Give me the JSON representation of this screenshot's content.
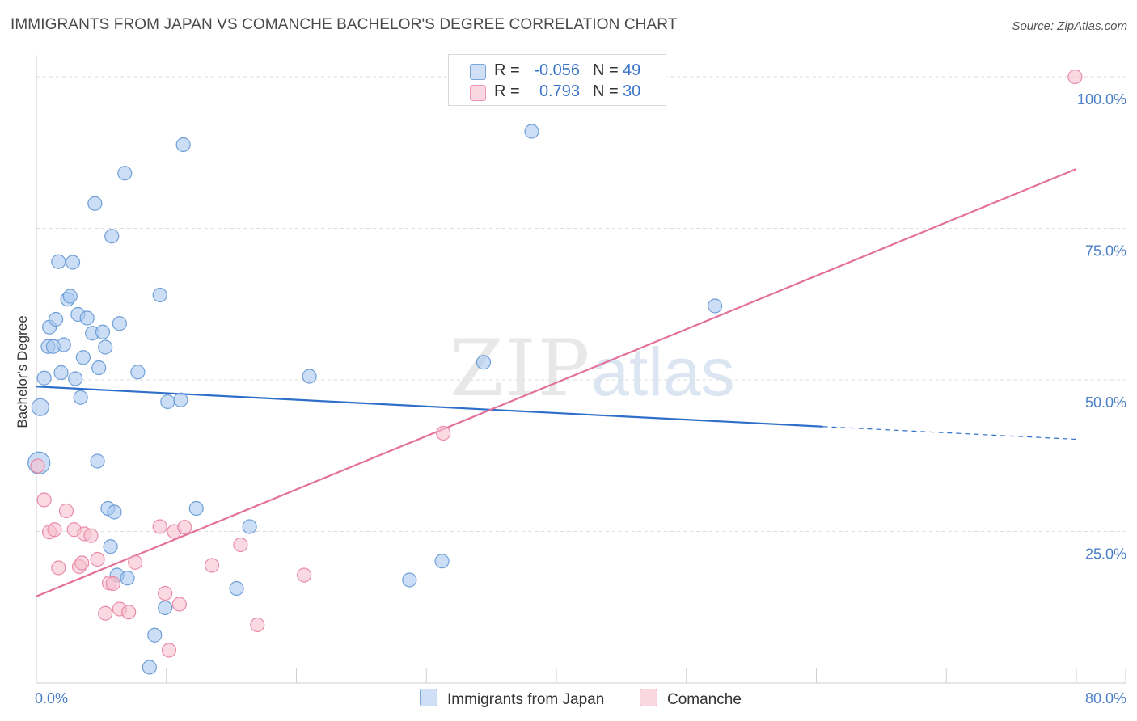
{
  "title": "IMMIGRANTS FROM JAPAN VS COMANCHE BACHELOR'S DEGREE CORRELATION CHART",
  "source": "Source: ZipAtlas.com",
  "watermark": {
    "zip": "ZIP",
    "atlas": "atlas"
  },
  "colors": {
    "blue": "#a9c8ee",
    "blue_stroke": "#6f9fd8",
    "blue_line": "#2f6fc9",
    "pink": "#f6bfd0",
    "pink_stroke": "#e98aa8",
    "pink_line": "#e3719a",
    "tick": "#4a7fc8",
    "grid": "#dddddd"
  },
  "legend": [
    {
      "r_label": "R =",
      "r_value": "-0.056",
      "n_label": "N =",
      "n_value": "49",
      "color": "#a9c8ee"
    },
    {
      "r_label": "R =",
      "r_value": "0.793",
      "n_label": "N =",
      "n_value": "30",
      "color": "#f6bfd0"
    }
  ],
  "bottom_legend": [
    {
      "label": "Immigrants from Japan",
      "color": "#a9c8ee"
    },
    {
      "label": "Comanche",
      "color": "#f6bfd0"
    }
  ],
  "chart_data": {
    "type": "scatter",
    "title": "IMMIGRANTS FROM JAPAN VS COMANCHE BACHELOR'S DEGREE CORRELATION CHART",
    "xlabel": "",
    "ylabel": "Bachelor's Degree",
    "xlim": [
      0,
      80
    ],
    "ylim": [
      0,
      100
    ],
    "x_tick_labels": [
      "0.0%",
      "80.0%"
    ],
    "y_tick_labels": [
      {
        "value": 100,
        "label": "100.0%"
      },
      {
        "value": 75,
        "label": "75.0%"
      },
      {
        "value": 50,
        "label": "50.0%"
      },
      {
        "value": 25,
        "label": "25.0%"
      }
    ],
    "series": [
      {
        "name": "Immigrants from Japan",
        "r": -0.056,
        "n": 49,
        "trend": {
          "x0": 0,
          "y0": 48.9,
          "x1": 60.5,
          "y1": 42.3,
          "dash_to_x": 80,
          "dash_to_y": 40.2
        },
        "points": [
          [
            0.2,
            36.3,
            24
          ],
          [
            0.3,
            45.5,
            18
          ],
          [
            0.6,
            50.3,
            14
          ],
          [
            0.9,
            55.5,
            14
          ],
          [
            1.0,
            58.7,
            14
          ],
          [
            1.3,
            55.5,
            14
          ],
          [
            1.5,
            60.0,
            14
          ],
          [
            1.7,
            69.5,
            14
          ],
          [
            1.9,
            51.2,
            14
          ],
          [
            2.1,
            55.8,
            14
          ],
          [
            2.4,
            63.3,
            14
          ],
          [
            2.6,
            63.8,
            14
          ],
          [
            2.8,
            69.4,
            14
          ],
          [
            3.0,
            50.2,
            14
          ],
          [
            3.2,
            60.8,
            14
          ],
          [
            3.4,
            47.1,
            14
          ],
          [
            3.6,
            53.7,
            14
          ],
          [
            3.9,
            60.2,
            14
          ],
          [
            4.3,
            57.7,
            14
          ],
          [
            4.5,
            79.1,
            14
          ],
          [
            4.7,
            36.6,
            14
          ],
          [
            4.8,
            52.0,
            14
          ],
          [
            5.1,
            57.9,
            14
          ],
          [
            5.3,
            55.4,
            14
          ],
          [
            5.5,
            28.8,
            14
          ],
          [
            5.8,
            73.7,
            14
          ],
          [
            5.7,
            22.5,
            14
          ],
          [
            6.0,
            28.2,
            14
          ],
          [
            6.2,
            17.8,
            14
          ],
          [
            6.4,
            59.3,
            14
          ],
          [
            6.8,
            84.1,
            14
          ],
          [
            7.0,
            17.3,
            14
          ],
          [
            7.8,
            51.3,
            14
          ],
          [
            8.7,
            2.6,
            14
          ],
          [
            9.1,
            7.9,
            14
          ],
          [
            9.5,
            64.0,
            14
          ],
          [
            9.9,
            12.4,
            14
          ],
          [
            10.1,
            46.4,
            14
          ],
          [
            11.1,
            46.7,
            14
          ],
          [
            11.3,
            88.8,
            14
          ],
          [
            12.3,
            28.8,
            14
          ],
          [
            15.4,
            15.6,
            14
          ],
          [
            16.4,
            25.8,
            14
          ],
          [
            21.0,
            50.6,
            14
          ],
          [
            28.7,
            17.0,
            14
          ],
          [
            31.2,
            20.1,
            14
          ],
          [
            34.4,
            52.9,
            14
          ],
          [
            38.1,
            91.0,
            14
          ],
          [
            52.2,
            62.2,
            14
          ]
        ]
      },
      {
        "name": "Comanche",
        "r": 0.793,
        "n": 30,
        "trend": {
          "x0": 0,
          "y0": 14.3,
          "x1": 80,
          "y1": 84.8
        },
        "points": [
          [
            0.1,
            35.8,
            14
          ],
          [
            0.6,
            30.2,
            14
          ],
          [
            1.0,
            24.9,
            14
          ],
          [
            1.4,
            25.3,
            14
          ],
          [
            1.7,
            19.0,
            14
          ],
          [
            2.3,
            28.4,
            14
          ],
          [
            2.9,
            25.3,
            14
          ],
          [
            3.3,
            19.2,
            14
          ],
          [
            3.5,
            19.8,
            14
          ],
          [
            3.7,
            24.6,
            14
          ],
          [
            4.2,
            24.3,
            14
          ],
          [
            4.7,
            20.4,
            14
          ],
          [
            5.3,
            11.5,
            14
          ],
          [
            5.6,
            16.5,
            14
          ],
          [
            5.9,
            16.4,
            14
          ],
          [
            6.4,
            12.2,
            14
          ],
          [
            7.1,
            11.7,
            14
          ],
          [
            7.6,
            19.9,
            14
          ],
          [
            9.5,
            25.8,
            14
          ],
          [
            9.9,
            14.8,
            14
          ],
          [
            10.2,
            5.4,
            14
          ],
          [
            10.6,
            25.0,
            14
          ],
          [
            11.0,
            13.0,
            14
          ],
          [
            11.4,
            25.7,
            14
          ],
          [
            13.5,
            19.4,
            14
          ],
          [
            15.7,
            22.8,
            14
          ],
          [
            17.0,
            9.6,
            14
          ],
          [
            20.6,
            17.8,
            14
          ],
          [
            31.3,
            41.2,
            14
          ],
          [
            79.9,
            100.0,
            14
          ]
        ]
      }
    ]
  }
}
